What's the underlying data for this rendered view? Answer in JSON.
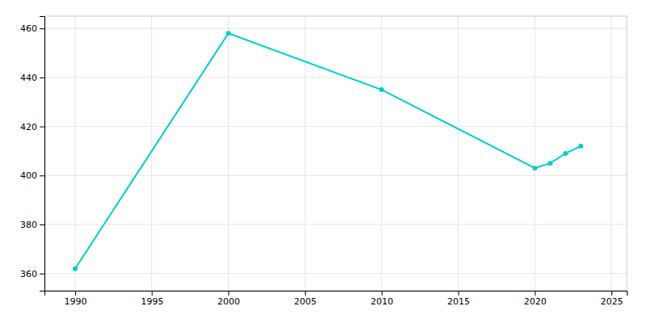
{
  "chart_data": {
    "type": "line",
    "x": [
      1990,
      2000,
      2010,
      2020,
      2021,
      2022,
      2023
    ],
    "values": [
      362,
      458,
      435,
      403,
      405,
      409,
      412
    ],
    "color": "#00CDCD",
    "marker": "circle",
    "xlim": [
      1988,
      2026
    ],
    "ylim": [
      353,
      465
    ],
    "xticks": [
      1990,
      1995,
      2000,
      2005,
      2010,
      2015,
      2020,
      2025
    ],
    "yticks": [
      360,
      380,
      400,
      420,
      440,
      460
    ],
    "grid": true
  }
}
